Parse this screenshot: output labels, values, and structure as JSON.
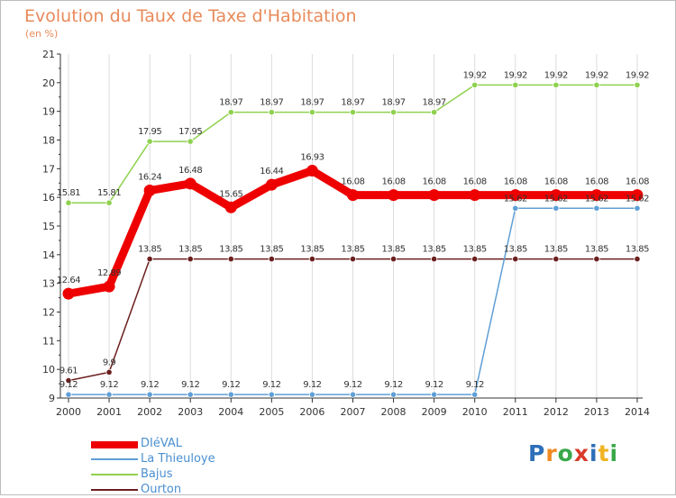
{
  "header": {
    "title": "Evolution du Taux de Taxe d'Habitation",
    "subtitle": "(en %)"
  },
  "logo": {
    "text": "Proxiti"
  },
  "colors": {
    "title": "#e88a5a",
    "legend_text": "#4a8fd0",
    "axis": "#333333",
    "grid": "#dcdcdc"
  },
  "chart_data": {
    "type": "line",
    "title": "Evolution du Taux de Taxe d'Habitation",
    "ylabel": "(en %)",
    "xlabel": "",
    "x": [
      "2000",
      "2001",
      "2002",
      "2003",
      "2004",
      "2005",
      "2006",
      "2007",
      "2008",
      "2009",
      "2010",
      "2011",
      "2012",
      "2013",
      "2014"
    ],
    "yticks": [
      "9",
      "10",
      "11",
      "12",
      "13",
      "14",
      "15",
      "16",
      "17",
      "18",
      "19",
      "20",
      "21"
    ],
    "ylim": [
      9,
      21
    ],
    "grid": "vertical-only",
    "legend_position": "bottom-left",
    "series": [
      {
        "name": "DIéVAL",
        "color": "#ee0000",
        "values": [
          12.64,
          12.89,
          16.24,
          16.48,
          15.65,
          16.44,
          16.93,
          16.08,
          16.08,
          16.08,
          16.08,
          16.08,
          16.08,
          16.08,
          16.08
        ],
        "labels": [
          "12.64",
          "12.89",
          "16.24",
          "16.48",
          "15.65",
          "16.44",
          "16.93",
          "16.08",
          "16.08",
          "16.08",
          "16.08",
          "16.08",
          "16.08",
          "16.08",
          "16.08"
        ]
      },
      {
        "name": "La Thieuloye",
        "color": "#5f9fd6",
        "values": [
          9.12,
          9.12,
          9.12,
          9.12,
          9.12,
          9.12,
          9.12,
          9.12,
          9.12,
          9.12,
          9.12,
          15.62,
          15.62,
          15.62,
          15.62
        ],
        "labels": [
          "9.12",
          "9.12",
          "9.12",
          "9.12",
          "9.12",
          "9.12",
          "9.12",
          "9.12",
          "9.12",
          "9.12",
          "9.12",
          "15.62",
          "15.62",
          "15.62",
          "15.62"
        ]
      },
      {
        "name": "Bajus",
        "color": "#8fd14f",
        "values": [
          15.81,
          15.81,
          17.95,
          17.95,
          18.97,
          18.97,
          18.97,
          18.97,
          18.97,
          18.97,
          19.92,
          19.92,
          19.92,
          19.92,
          19.92
        ],
        "labels": [
          "15.81",
          "15.81",
          "17.95",
          "17.95",
          "18.97",
          "18.97",
          "18.97",
          "18.97",
          "18.97",
          "18.97",
          "19.92",
          "19.92",
          "19.92",
          "19.92",
          "19.92"
        ]
      },
      {
        "name": "Ourton",
        "color": "#6b1f1f",
        "values": [
          9.61,
          9.9,
          13.85,
          13.85,
          13.85,
          13.85,
          13.85,
          13.85,
          13.85,
          13.85,
          13.85,
          13.85,
          13.85,
          13.85,
          13.85
        ],
        "labels": [
          "9.61",
          "9.9",
          "13.85",
          "13.85",
          "13.85",
          "13.85",
          "13.85",
          "13.85",
          "13.85",
          "13.85",
          "13.85",
          "13.85",
          "13.85",
          "13.85",
          "13.85"
        ]
      }
    ]
  }
}
